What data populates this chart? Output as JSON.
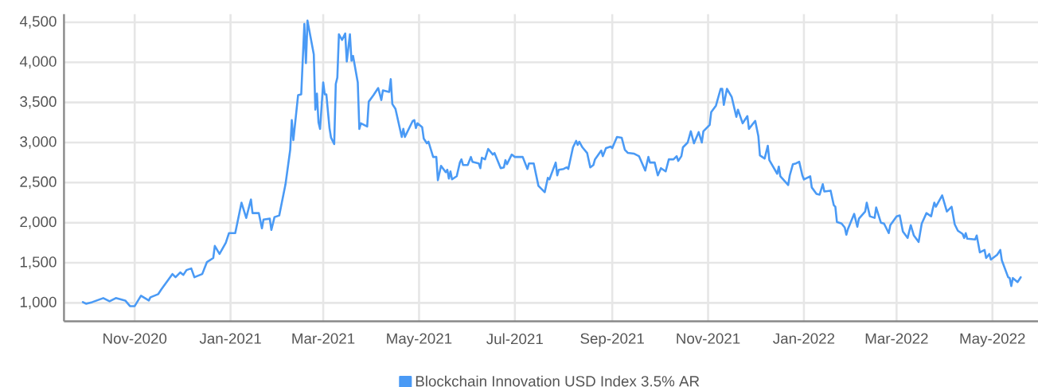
{
  "chart_data": {
    "type": "line",
    "x": [
      "2020-09-29",
      "2020-10-01",
      "2020-10-05",
      "2020-10-12",
      "2020-10-16",
      "2020-10-20",
      "2020-10-26",
      "2020-10-29",
      "2020-11-01",
      "2020-11-05",
      "2020-11-10",
      "2020-11-11",
      "2020-11-16",
      "2020-11-18",
      "2020-11-25",
      "2020-11-27",
      "2020-11-30",
      "2020-12-02",
      "2020-12-04",
      "2020-12-07",
      "2020-12-09",
      "2020-12-14",
      "2020-12-17",
      "2020-12-21",
      "2020-12-22",
      "2020-12-25",
      "2020-12-29",
      "2020-12-31",
      "2021-01-04",
      "2021-01-08",
      "2021-01-11",
      "2021-01-14",
      "2021-01-15",
      "2021-01-19",
      "2021-01-21",
      "2021-01-22",
      "2021-01-26",
      "2021-01-27",
      "2021-01-29",
      "2021-02-01",
      "2021-02-05",
      "2021-02-08",
      "2021-02-09",
      "2021-02-10",
      "2021-02-13",
      "2021-02-15",
      "2021-02-17",
      "2021-02-18",
      "2021-02-19",
      "2021-02-23",
      "2021-02-24",
      "2021-02-25",
      "2021-02-26",
      "2021-02-27",
      "2021-03-01",
      "2021-03-02",
      "2021-03-03",
      "2021-03-05",
      "2021-03-06",
      "2021-03-08",
      "2021-03-09",
      "2021-03-10",
      "2021-03-11",
      "2021-03-13",
      "2021-03-15",
      "2021-03-16",
      "2021-03-18",
      "2021-03-19",
      "2021-03-20",
      "2021-03-23",
      "2021-03-24",
      "2021-03-25",
      "2021-03-29",
      "2021-03-30",
      "2021-04-02",
      "2021-04-05",
      "2021-04-07",
      "2021-04-08",
      "2021-04-12",
      "2021-04-13",
      "2021-04-14",
      "2021-04-16",
      "2021-04-20",
      "2021-04-21",
      "2021-04-22",
      "2021-04-27",
      "2021-04-28",
      "2021-04-29",
      "2021-04-30",
      "2021-05-03",
      "2021-05-04",
      "2021-05-06",
      "2021-05-07",
      "2021-05-10",
      "2021-05-12",
      "2021-05-13",
      "2021-05-15",
      "2021-05-18",
      "2021-05-19",
      "2021-05-20",
      "2021-05-21",
      "2021-05-22",
      "2021-05-25",
      "2021-05-27",
      "2021-05-28",
      "2021-05-29",
      "2021-06-01",
      "2021-06-03",
      "2021-06-04",
      "2021-06-08",
      "2021-06-09",
      "2021-06-10",
      "2021-06-12",
      "2021-06-14",
      "2021-06-17",
      "2021-06-18",
      "2021-06-22",
      "2021-06-24",
      "2021-06-25",
      "2021-06-26",
      "2021-06-29",
      "2021-07-01",
      "2021-07-06",
      "2021-07-09",
      "2021-07-10",
      "2021-07-13",
      "2021-07-16",
      "2021-07-20",
      "2021-07-22",
      "2021-07-23",
      "2021-07-27",
      "2021-07-28",
      "2021-07-29",
      "2021-08-01",
      "2021-08-03",
      "2021-08-04",
      "2021-08-07",
      "2021-08-09",
      "2021-08-10",
      "2021-08-11",
      "2021-08-13",
      "2021-08-16",
      "2021-08-18",
      "2021-08-20",
      "2021-08-21",
      "2021-08-25",
      "2021-08-26",
      "2021-08-28",
      "2021-08-31",
      "2021-09-01",
      "2021-09-04",
      "2021-09-07",
      "2021-09-09",
      "2021-09-11",
      "2021-09-15",
      "2021-09-18",
      "2021-09-22",
      "2021-09-24",
      "2021-09-25",
      "2021-09-28",
      "2021-09-30",
      "2021-10-02",
      "2021-10-05",
      "2021-10-07",
      "2021-10-10",
      "2021-10-12",
      "2021-10-13",
      "2021-10-15",
      "2021-10-16",
      "2021-10-19",
      "2021-10-21",
      "2021-10-23",
      "2021-10-26",
      "2021-10-28",
      "2021-10-29",
      "2021-11-02",
      "2021-11-03",
      "2021-11-06",
      "2021-11-09",
      "2021-11-10",
      "2021-11-11",
      "2021-11-13",
      "2021-11-16",
      "2021-11-19",
      "2021-11-20",
      "2021-11-23",
      "2021-11-26",
      "2021-11-27",
      "2021-12-01",
      "2021-12-03",
      "2021-12-04",
      "2021-12-07",
      "2021-12-09",
      "2021-12-10",
      "2021-12-15",
      "2021-12-16",
      "2021-12-17",
      "2021-12-22",
      "2021-12-23",
      "2021-12-25",
      "2021-12-27",
      "2021-12-29",
      "2021-12-31",
      "2022-01-01",
      "2022-01-05",
      "2022-01-06",
      "2022-01-09",
      "2022-01-11",
      "2022-01-13",
      "2022-01-14",
      "2022-01-18",
      "2022-01-20",
      "2022-01-21",
      "2022-01-22",
      "2022-01-25",
      "2022-01-27",
      "2022-01-28",
      "2022-01-29",
      "2022-02-02",
      "2022-02-04",
      "2022-02-05",
      "2022-02-09",
      "2022-02-10",
      "2022-02-12",
      "2022-02-15",
      "2022-02-16",
      "2022-02-19",
      "2022-02-21",
      "2022-02-24",
      "2022-02-25",
      "2022-03-01",
      "2022-03-03",
      "2022-03-05",
      "2022-03-08",
      "2022-03-10",
      "2022-03-12",
      "2022-03-15",
      "2022-03-17",
      "2022-03-20",
      "2022-03-23",
      "2022-03-24",
      "2022-03-25",
      "2022-03-26",
      "2022-03-30",
      "2022-04-02",
      "2022-04-05",
      "2022-04-07",
      "2022-04-09",
      "2022-04-12",
      "2022-04-13",
      "2022-04-14",
      "2022-04-15",
      "2022-04-20",
      "2022-04-21",
      "2022-04-23",
      "2022-04-26",
      "2022-04-27",
      "2022-04-29",
      "2022-04-30",
      "2022-05-04",
      "2022-05-06",
      "2022-05-07",
      "2022-05-11",
      "2022-05-12",
      "2022-05-13",
      "2022-05-14",
      "2022-05-17",
      "2022-05-19"
    ],
    "series": [
      {
        "name": "Blockchain Innovation USD Index 3.5% AR",
        "color": "#4a9af5",
        "values": [
          1010,
          990,
          1010,
          1060,
          1020,
          1060,
          1030,
          960,
          960,
          1090,
          1030,
          1070,
          1110,
          1170,
          1360,
          1320,
          1380,
          1350,
          1410,
          1430,
          1320,
          1360,
          1510,
          1560,
          1710,
          1610,
          1750,
          1870,
          1870,
          2250,
          2060,
          2290,
          2120,
          2120,
          1930,
          2040,
          2050,
          1910,
          2070,
          2090,
          2480,
          2910,
          3280,
          3030,
          3590,
          3600,
          4480,
          3990,
          4520,
          4100,
          3410,
          3610,
          3250,
          3170,
          3750,
          3600,
          3600,
          3180,
          3060,
          2980,
          3730,
          3810,
          4350,
          4280,
          4360,
          4010,
          4350,
          4020,
          4080,
          3750,
          3170,
          3240,
          3200,
          3510,
          3590,
          3680,
          3530,
          3650,
          3630,
          3790,
          3480,
          3420,
          3070,
          3170,
          3070,
          3270,
          3280,
          3180,
          3240,
          3190,
          3050,
          2990,
          3010,
          2820,
          2820,
          2530,
          2710,
          2630,
          2660,
          2550,
          2640,
          2540,
          2580,
          2750,
          2790,
          2720,
          2720,
          2820,
          2760,
          2740,
          2680,
          2810,
          2790,
          2920,
          2850,
          2870,
          2680,
          2690,
          2780,
          2730,
          2850,
          2820,
          2820,
          2670,
          2740,
          2740,
          2460,
          2380,
          2560,
          2540,
          2750,
          2590,
          2660,
          2670,
          2690,
          2670,
          2940,
          3020,
          2970,
          3010,
          2940,
          2870,
          2690,
          2720,
          2790,
          2900,
          2830,
          2930,
          2950,
          2930,
          3070,
          3060,
          2910,
          2870,
          2860,
          2830,
          2650,
          2820,
          2750,
          2750,
          2590,
          2680,
          2640,
          2790,
          2790,
          2830,
          2770,
          2830,
          2940,
          3000,
          3140,
          2990,
          3130,
          3000,
          3140,
          3220,
          3380,
          3460,
          3670,
          3670,
          3470,
          3670,
          3570,
          3320,
          3410,
          3240,
          3330,
          3170,
          3270,
          3080,
          2840,
          2800,
          2960,
          2780,
          2610,
          2700,
          2580,
          2470,
          2590,
          2730,
          2740,
          2760,
          2590,
          2540,
          2580,
          2440,
          2360,
          2350,
          2480,
          2390,
          2400,
          2220,
          2200,
          2010,
          1990,
          1940,
          1850,
          1920,
          2110,
          1950,
          2050,
          2140,
          2250,
          2080,
          2060,
          2190,
          2000,
          1990,
          1870,
          1970,
          2080,
          2090,
          1890,
          1810,
          1970,
          1840,
          1760,
          1990,
          2120,
          2080,
          2170,
          2250,
          2200,
          2340,
          2140,
          2200,
          1980,
          1900,
          1860,
          1810,
          1870,
          1800,
          1790,
          1840,
          1630,
          1660,
          1560,
          1610,
          1540,
          1600,
          1660,
          1530,
          1320,
          1310,
          1210,
          1310,
          1260,
          1320
        ]
      }
    ],
    "xlim": [
      "2020-09-17",
      "2022-05-30"
    ],
    "ylim": [
      770,
      4600
    ],
    "xticks": [
      {
        "value": "2020-11-01",
        "label": "Nov-2020"
      },
      {
        "value": "2021-01-01",
        "label": "Jan-2021"
      },
      {
        "value": "2021-03-01",
        "label": "Mar-2021"
      },
      {
        "value": "2021-05-01",
        "label": "May-2021"
      },
      {
        "value": "2021-07-01",
        "label": "Jul-2021"
      },
      {
        "value": "2021-09-01",
        "label": "Sep-2021"
      },
      {
        "value": "2021-11-01",
        "label": "Nov-2021"
      },
      {
        "value": "2022-01-01",
        "label": "Jan-2022"
      },
      {
        "value": "2022-03-01",
        "label": "Mar-2022"
      },
      {
        "value": "2022-05-01",
        "label": "May-2022"
      }
    ],
    "yticks": [
      {
        "value": 1000,
        "label": "1,000"
      },
      {
        "value": 1500,
        "label": "1,500"
      },
      {
        "value": 2000,
        "label": "2,000"
      },
      {
        "value": 2500,
        "label": "2,500"
      },
      {
        "value": 3000,
        "label": "3,000"
      },
      {
        "value": 3500,
        "label": "3,500"
      },
      {
        "value": 4000,
        "label": "4,000"
      },
      {
        "value": 4500,
        "label": "4,500"
      }
    ],
    "grid": true,
    "legend": "bottom",
    "marker": "none",
    "line_style": "solid"
  }
}
